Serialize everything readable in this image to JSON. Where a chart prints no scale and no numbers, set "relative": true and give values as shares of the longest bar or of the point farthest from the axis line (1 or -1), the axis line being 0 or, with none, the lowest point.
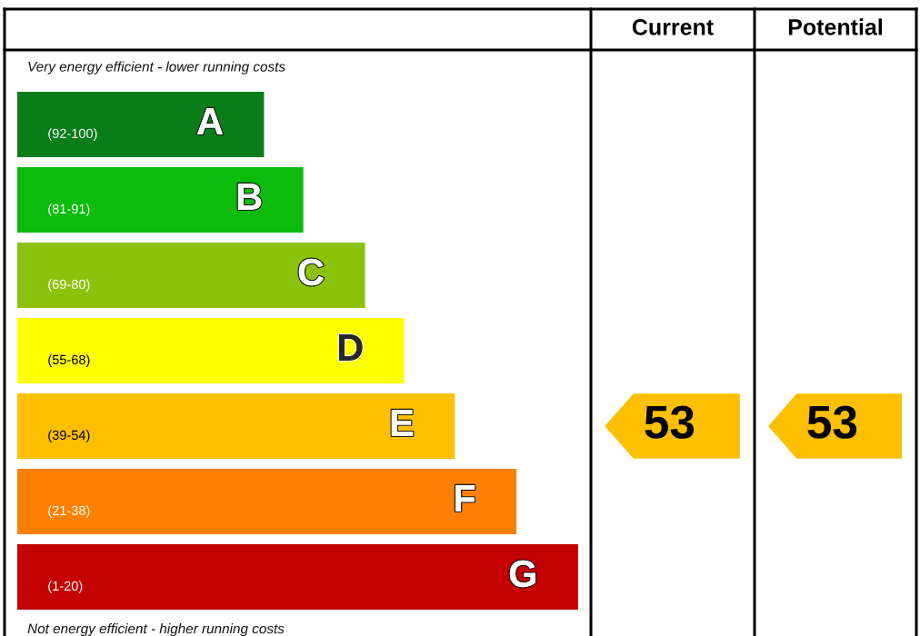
{
  "chart_data": [
    {
      "type": "bar",
      "orientation": "horizontal",
      "relative": true,
      "categories": [
        "(92-100)",
        "(81-91)",
        "(69-80)",
        "(55-68)",
        "(39-54)",
        "(21-38)",
        "(1-20)"
      ],
      "values": [
        0.44,
        0.51,
        0.62,
        0.69,
        0.78,
        0.89,
        1
      ],
      "colors": [
        "#0a7d1a",
        "#0cbb0c",
        "#8cc20c",
        "#ffff00",
        "#fcc000",
        "#ff8000",
        "#c40000"
      ],
      "annotations": [
        "Very energy efficient - lower running costs",
        "Not energy efficient - higher running costs",
        {
          "text": "A",
          "x": 0.44,
          "y": "(92-100)"
        },
        {
          "text": "B",
          "x": 0.51,
          "y": "(81-91)"
        },
        {
          "text": "C",
          "x": 0.62,
          "y": "(69-80)"
        },
        {
          "text": "D",
          "x": 0.69,
          "y": "(55-68)"
        },
        {
          "text": "E",
          "x": 0.78,
          "y": "(39-54)"
        },
        {
          "text": "F",
          "x": 0.89,
          "y": "(21-38)"
        },
        {
          "text": "G",
          "x": 1,
          "y": "(1-20)"
        }
      ]
    },
    {
      "type": "other",
      "title": "Current",
      "categories": [
        null,
        null,
        null,
        null,
        null,
        null,
        null
      ],
      "values": [
        null,
        null,
        null,
        null,
        53,
        null,
        null
      ],
      "color": "#fcc000",
      "data_labels": true
    },
    {
      "type": "other",
      "title": "Potential",
      "categories": [
        null,
        null,
        null,
        null,
        null,
        null,
        null
      ],
      "values": [
        null,
        null,
        null,
        null,
        53,
        null,
        null
      ],
      "color": "#fcc000",
      "data_labels": true
    }
  ]
}
